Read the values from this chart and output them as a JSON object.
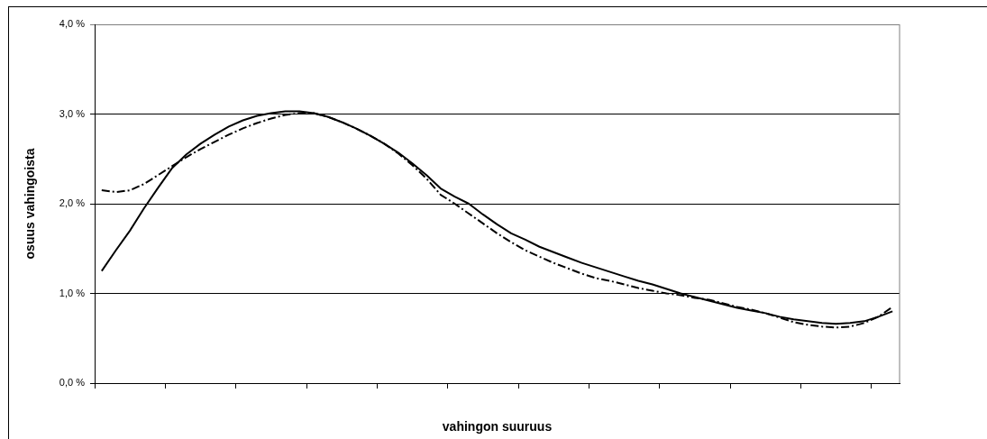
{
  "chart_data": {
    "type": "line",
    "xlabel": "vahingon suuruus",
    "ylabel": "osuus vahingoista",
    "categories": [
      null,
      null,
      null,
      null,
      null,
      null,
      null,
      null,
      null,
      null,
      null,
      null,
      null,
      null,
      null,
      null,
      null,
      null,
      null,
      null,
      null,
      null,
      null,
      null,
      null,
      null,
      null,
      null,
      null,
      null,
      null,
      null,
      null,
      null,
      null,
      null,
      null,
      null,
      null,
      null,
      null,
      null,
      null,
      null,
      null,
      null,
      null,
      null,
      null,
      null,
      null,
      null,
      null,
      null,
      null,
      null,
      null
    ],
    "series": [
      {
        "color": "#000000",
        "line_style": "solid",
        "values": [
          1.25,
          1.48,
          1.7,
          1.95,
          2.18,
          2.4,
          2.55,
          2.67,
          2.77,
          2.86,
          2.93,
          2.98,
          3.01,
          3.03,
          3.03,
          3.01,
          2.97,
          2.91,
          2.84,
          2.76,
          2.67,
          2.57,
          2.45,
          2.32,
          2.17,
          2.08,
          2.0,
          1.88,
          1.77,
          1.67,
          1.6,
          1.52,
          1.46,
          1.4,
          1.34,
          1.29,
          1.24,
          1.19,
          1.14,
          1.1,
          1.05,
          1.0,
          0.96,
          0.92,
          0.88,
          0.84,
          0.81,
          0.78,
          0.74,
          0.71,
          0.69,
          0.67,
          0.66,
          0.67,
          0.69,
          0.74,
          0.8
        ]
      },
      {
        "color": "#000000",
        "line_style": "dashed",
        "values": [
          2.15,
          2.13,
          2.15,
          2.22,
          2.32,
          2.42,
          2.52,
          2.61,
          2.69,
          2.77,
          2.84,
          2.9,
          2.95,
          2.99,
          3.01,
          3.01,
          2.97,
          2.91,
          2.84,
          2.76,
          2.67,
          2.56,
          2.43,
          2.28,
          2.1,
          2.0,
          1.89,
          1.78,
          1.67,
          1.57,
          1.48,
          1.41,
          1.34,
          1.28,
          1.22,
          1.17,
          1.14,
          1.1,
          1.06,
          1.03,
          1.0,
          0.98,
          0.95,
          0.93,
          0.89,
          0.85,
          0.82,
          0.78,
          0.73,
          0.68,
          0.65,
          0.63,
          0.62,
          0.63,
          0.67,
          0.74,
          0.85
        ]
      }
    ],
    "ylim": [
      0,
      4
    ],
    "yticks": [
      {
        "value": 0,
        "label": "0,0 %"
      },
      {
        "value": 1,
        "label": "1,0 %"
      },
      {
        "value": 2,
        "label": "2,0 %"
      },
      {
        "value": 3,
        "label": "3,0 %"
      },
      {
        "value": 4,
        "label": "4,0 %"
      }
    ],
    "grid": "y",
    "legend": false,
    "marker": "none",
    "tick_labels": "y"
  }
}
